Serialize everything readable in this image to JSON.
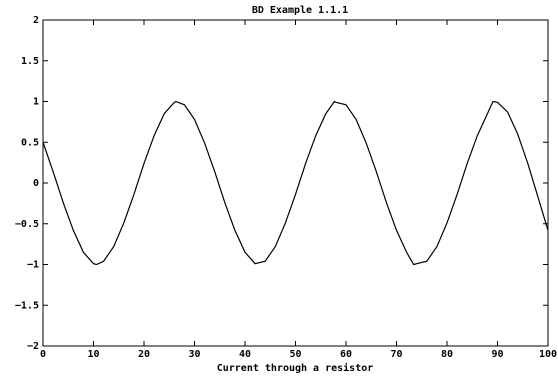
{
  "chart_data": {
    "type": "line",
    "title": "BD Example 1.1.1",
    "xlabel": "Current through a resistor",
    "ylabel": "",
    "xlim": [
      0,
      100
    ],
    "ylim": [
      -2,
      2
    ],
    "xticks": [
      0,
      10,
      20,
      30,
      40,
      50,
      60,
      70,
      80,
      90,
      100
    ],
    "yticks": [
      -2,
      -1.5,
      -1,
      -0.5,
      0,
      0.5,
      1,
      1.5,
      2
    ],
    "xtick_labels": [
      "0",
      "10",
      "20",
      "30",
      "40",
      "50",
      "60",
      "70",
      "80",
      "90",
      "100"
    ],
    "ytick_labels": [
      "−2",
      "−1.5",
      "−1",
      "−0.5",
      "0",
      "0.5",
      "1",
      "1.5",
      "2"
    ],
    "grid": false,
    "series": [
      {
        "x": [
          0,
          2,
          4,
          6,
          8,
          10,
          10.6,
          12,
          14,
          16,
          18,
          20,
          22,
          24,
          26,
          26.3,
          28,
          30,
          32,
          34,
          36,
          38,
          40,
          42,
          44,
          46,
          48,
          50,
          52,
          54,
          56,
          57.7,
          58,
          60,
          62,
          64,
          66,
          68,
          70,
          72,
          73.4,
          74,
          76,
          78,
          80,
          82,
          84,
          86,
          88,
          89.1,
          90,
          92,
          94,
          96,
          98,
          100
        ],
        "y": [
          0.5,
          0.14,
          -0.24,
          -0.58,
          -0.85,
          -0.99,
          -1.0,
          -0.96,
          -0.78,
          -0.49,
          -0.14,
          0.24,
          0.58,
          0.85,
          0.99,
          1.0,
          0.96,
          0.78,
          0.49,
          0.14,
          -0.24,
          -0.58,
          -0.85,
          -0.99,
          -0.96,
          -0.78,
          -0.49,
          -0.14,
          0.24,
          0.58,
          0.85,
          1.0,
          0.99,
          0.96,
          0.78,
          0.49,
          0.14,
          -0.24,
          -0.58,
          -0.85,
          -1.0,
          -0.99,
          -0.96,
          -0.78,
          -0.49,
          -0.14,
          0.24,
          0.58,
          0.85,
          1.0,
          0.99,
          0.87,
          0.6,
          0.24,
          -0.17,
          -0.58
        ]
      }
    ]
  }
}
